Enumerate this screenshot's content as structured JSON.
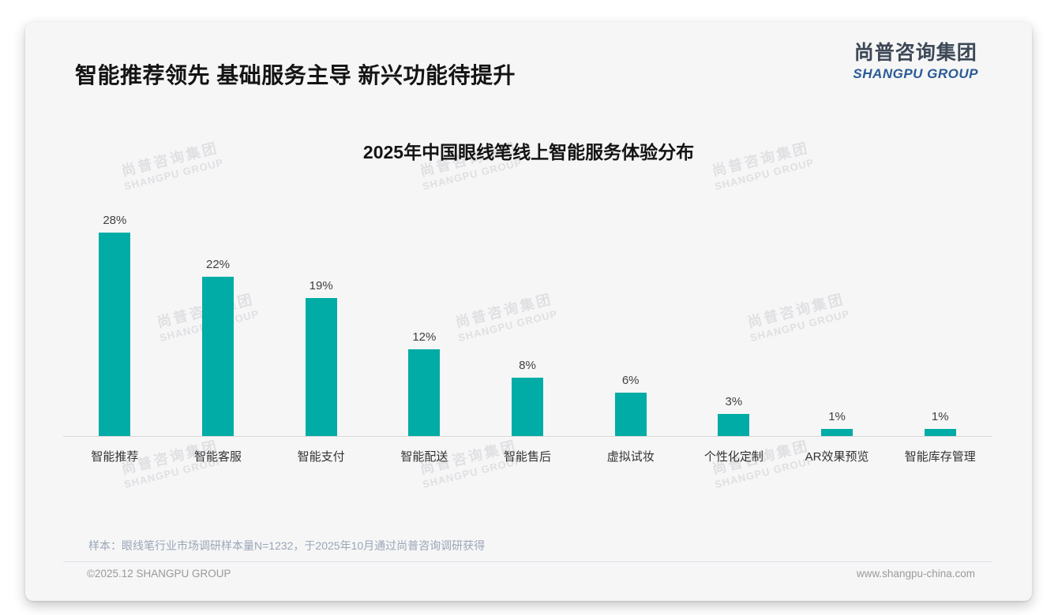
{
  "page": {
    "title": "智能推荐领先 基础服务主导 新兴功能待提升",
    "logo": {
      "cn": "尚普咨询集团",
      "en": "SHANGPU GROUP"
    },
    "watermark": {
      "line1": "尚普咨询集团",
      "line2": "SHANGPU GROUP"
    },
    "footer": {
      "note": "样本：眼线笔行业市场调研样本量N=1232，于2025年10月通过尚普咨询调研获得",
      "copyright": "©2025.12 SHANGPU GROUP",
      "website": "www.shangpu-china.com"
    }
  },
  "colors": {
    "bar": "#00aca5",
    "logo_blue": "#2a5b94",
    "logo_dark": "#3d4857",
    "card_bg": "#f6f6f7",
    "axis_line": "#d9d9d9",
    "note_text": "#9aa6b6",
    "footer_text": "#9a9a9a",
    "watermark": "#e0e0e3"
  },
  "chart_data": {
    "type": "bar",
    "title": "2025年中国眼线笔线上智能服务体验分布",
    "categories": [
      "智能推荐",
      "智能客服",
      "智能支付",
      "智能配送",
      "智能售后",
      "虚拟试妆",
      "个性化定制",
      "AR效果预览",
      "智能库存管理"
    ],
    "values": [
      28,
      22,
      19,
      12,
      8,
      6,
      3,
      1,
      1
    ],
    "unit": "%",
    "xlabel": "",
    "ylabel": "",
    "ylim": [
      0,
      30
    ],
    "grid": false,
    "legend": "none",
    "value_labels": "above bars",
    "bar_color": "#00aca5"
  }
}
